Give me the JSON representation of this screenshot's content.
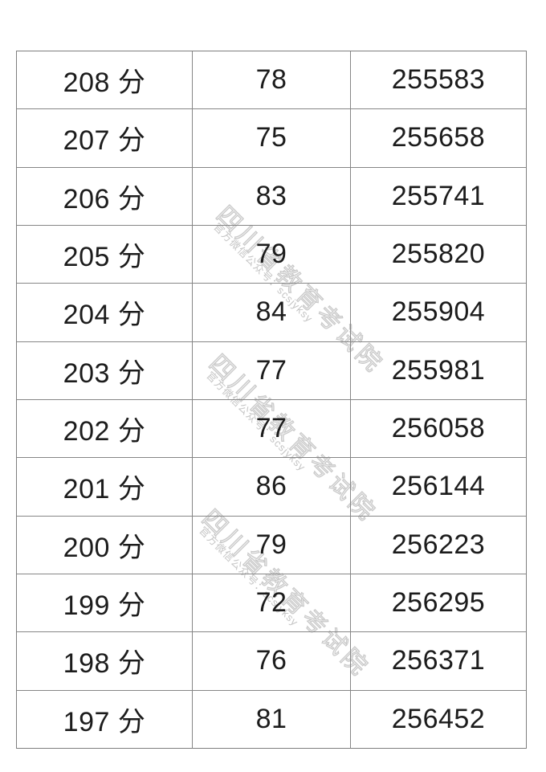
{
  "watermark": {
    "main": "四川省教育考试院",
    "sub": "官方微信公众号：scsjyksy"
  },
  "colors": {
    "border": "#868686",
    "text": "#1c1c1c",
    "watermark": "#c9c9c9",
    "background": "#ffffff"
  },
  "table": {
    "rows": [
      {
        "score": "208 分",
        "count": "78",
        "cumulative": "255583"
      },
      {
        "score": "207 分",
        "count": "75",
        "cumulative": "255658"
      },
      {
        "score": "206 分",
        "count": "83",
        "cumulative": "255741"
      },
      {
        "score": "205 分",
        "count": "79",
        "cumulative": "255820"
      },
      {
        "score": "204 分",
        "count": "84",
        "cumulative": "255904"
      },
      {
        "score": "203 分",
        "count": "77",
        "cumulative": "255981"
      },
      {
        "score": "202 分",
        "count": "77",
        "cumulative": "256058"
      },
      {
        "score": "201 分",
        "count": "86",
        "cumulative": "256144"
      },
      {
        "score": "200 分",
        "count": "79",
        "cumulative": "256223"
      },
      {
        "score": "199 分",
        "count": "72",
        "cumulative": "256295"
      },
      {
        "score": "198 分",
        "count": "76",
        "cumulative": "256371"
      },
      {
        "score": "197 分",
        "count": "81",
        "cumulative": "256452"
      }
    ]
  }
}
